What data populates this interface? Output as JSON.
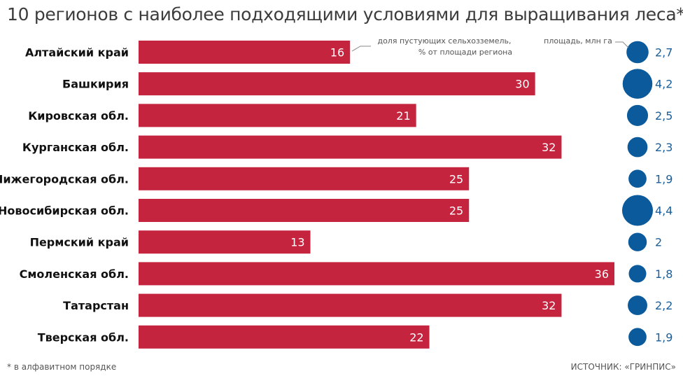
{
  "title": "10 регионов с наиболее подходящими условиями для выращивания леса*",
  "footnote": "* в алфавитном порядке",
  "source": "ИСТОЧНИК: «ГРИНПИС»",
  "colors": {
    "bar": "#c4243e",
    "circle": "#0a5a9c",
    "area_text": "#1a5f9a",
    "connector": "#888888"
  },
  "chart_data": {
    "type": "bar",
    "orientation": "horizontal",
    "categories": [
      "Алтайский край",
      "Башкирия",
      "Кировская обл.",
      "Курганская обл.",
      "Нижегородская обл.",
      "Новосибирская обл.",
      "Пермский край",
      "Смоленская обл.",
      "Татарстан",
      "Тверская обл."
    ],
    "series": [
      {
        "name": "доля пустующих сельхозземель, % от площади региона",
        "values": [
          16,
          30,
          21,
          32,
          25,
          25,
          13,
          36,
          32,
          22
        ]
      },
      {
        "name": "площадь, млн га",
        "values": [
          "2,7",
          "4,2",
          "2,5",
          "2,3",
          "1,9",
          "4,4",
          "2",
          "1,8",
          "2,2",
          "1,9"
        ]
      }
    ],
    "annotations": {
      "bar_series_line1": "доля пустующих сельхозземель,",
      "bar_series_line2": "% от площади региона",
      "area_series": "площадь, млн га"
    },
    "xlim": [
      0,
      36
    ],
    "grid": false,
    "legend": "none"
  }
}
